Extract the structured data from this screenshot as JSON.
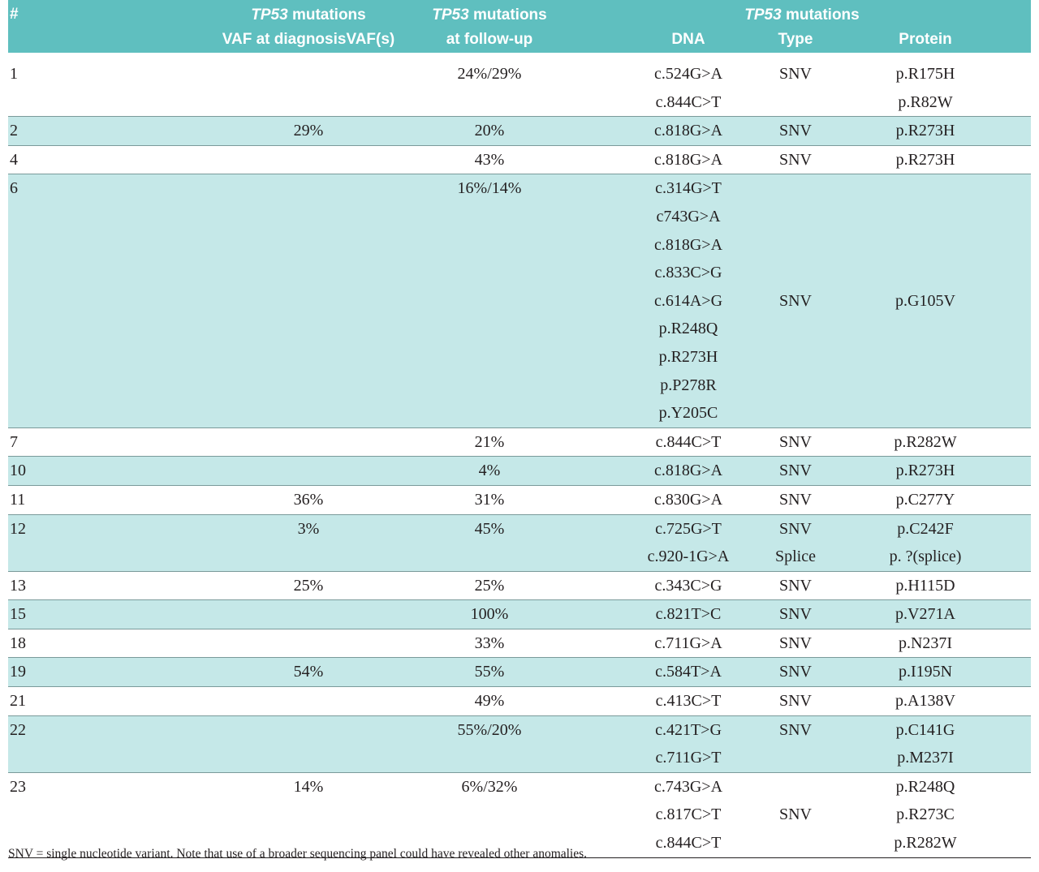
{
  "header": {
    "number": "#",
    "diagnosis": {
      "gene": "TP53",
      "text": "mutations",
      "sub": "VAF at diagnosisVAF(s)"
    },
    "followup": {
      "gene": "TP53",
      "text": "mutations",
      "sub": "at follow-up"
    },
    "mutations": {
      "gene": "TP53",
      "text": "mutations",
      "dna": "DNA",
      "type": "Type",
      "protein": "Protein"
    }
  },
  "table": {
    "rows": [
      {
        "id": "1",
        "vaf_dx": null,
        "vaf_fu": "24%/29%",
        "dna": [
          "c.524G>A",
          "c.844C>T"
        ],
        "type": [
          "SNV"
        ],
        "protein": [
          "p.R175H",
          "p.R82W"
        ]
      },
      {
        "id": "2",
        "vaf_dx": "29%",
        "vaf_fu": "20%",
        "dna": [
          "c.818G>A"
        ],
        "type": [
          "SNV"
        ],
        "protein": [
          "p.R273H"
        ]
      },
      {
        "id": "4",
        "vaf_dx": null,
        "vaf_fu": "43%",
        "dna": [
          "c.818G>A"
        ],
        "type": [
          "SNV"
        ],
        "protein": [
          "p.R273H"
        ]
      },
      {
        "id": "6",
        "vaf_dx": null,
        "vaf_fu": "16%/14%",
        "dna": [
          "c.314G>T",
          "c743G>A",
          "c.818G>A",
          "c.833C>G",
          "c.614A>G",
          "p.R248Q",
          "p.R273H",
          "p.P278R",
          "p.Y205C"
        ],
        "type": [
          "SNV"
        ],
        "protein": [
          "p.G105V"
        ]
      },
      {
        "id": "7",
        "vaf_dx": null,
        "vaf_fu": "21%",
        "dna": [
          "c.844C>T"
        ],
        "type": [
          "SNV"
        ],
        "protein": [
          "p.R282W"
        ]
      },
      {
        "id": "10",
        "vaf_dx": null,
        "vaf_fu": "4%",
        "dna": [
          "c.818G>A"
        ],
        "type": [
          "SNV"
        ],
        "protein": [
          "p.R273H"
        ]
      },
      {
        "id": "11",
        "vaf_dx": "36%",
        "vaf_fu": "31%",
        "dna": [
          "c.830G>A"
        ],
        "type": [
          "SNV"
        ],
        "protein": [
          "p.C277Y"
        ]
      },
      {
        "id": "12",
        "vaf_dx": "3%",
        "vaf_fu": "45%",
        "dna": [
          "c.725G>T",
          "c.920-1G>A"
        ],
        "type": [
          "SNV",
          "Splice"
        ],
        "protein": [
          "p.C242F",
          "p. ?(splice)"
        ]
      },
      {
        "id": "13",
        "vaf_dx": "25%",
        "vaf_fu": "25%",
        "dna": [
          "c.343C>G"
        ],
        "type": [
          "SNV"
        ],
        "protein": [
          "p.H115D"
        ]
      },
      {
        "id": "15",
        "vaf_dx": null,
        "vaf_fu": "100%",
        "dna": [
          "c.821T>C"
        ],
        "type": [
          "SNV"
        ],
        "protein": [
          "p.V271A"
        ]
      },
      {
        "id": "18",
        "vaf_dx": null,
        "vaf_fu": "33%",
        "dna": [
          "c.711G>A"
        ],
        "type": [
          "SNV"
        ],
        "protein": [
          "p.N237I"
        ]
      },
      {
        "id": "19",
        "vaf_dx": "54%",
        "vaf_fu": "55%",
        "dna": [
          "c.584T>A"
        ],
        "type": [
          "SNV"
        ],
        "protein": [
          "p.I195N"
        ]
      },
      {
        "id": "21",
        "vaf_dx": null,
        "vaf_fu": "49%",
        "dna": [
          "c.413C>T"
        ],
        "type": [
          "SNV"
        ],
        "protein": [
          "p.A138V"
        ]
      },
      {
        "id": "22",
        "vaf_dx": null,
        "vaf_fu": "55%/20%",
        "dna": [
          "c.421T>G",
          "c.711G>T"
        ],
        "type": [
          "SNV"
        ],
        "protein": [
          "p.C141G",
          "p.M237I"
        ]
      },
      {
        "id": "23",
        "vaf_dx": "14%",
        "vaf_fu": "6%/32%",
        "dna": [
          "c.743G>A",
          "c.817C>T",
          "c.844C>T"
        ],
        "type": [
          "SNV"
        ],
        "protein": [
          "p.R248Q",
          "p.R273C",
          "p.R282W"
        ]
      }
    ]
  },
  "footnote": "SNV = single nucleotide variant. Note that use of a broader sequencing panel could have revealed other anomalies."
}
